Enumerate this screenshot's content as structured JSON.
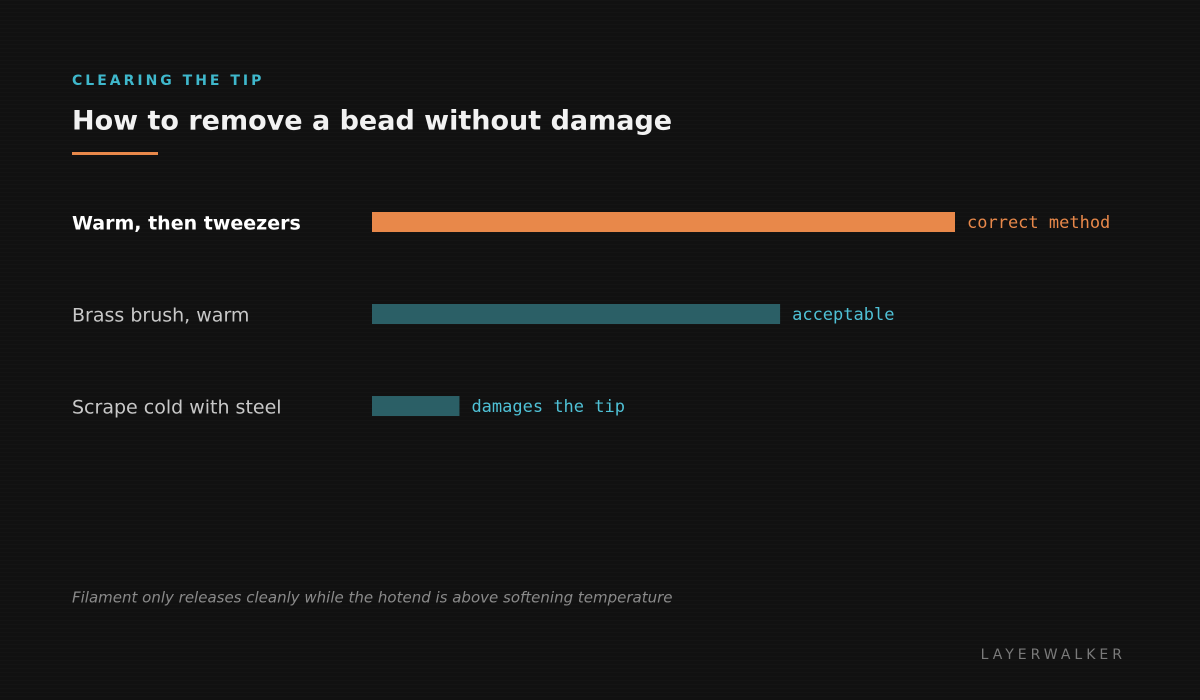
{
  "chart_data": {
    "type": "bar",
    "kicker": "CLEARING THE TIP",
    "title": "How to remove a bead without damage",
    "categories": [
      "Warm, then tweezers",
      "Brass brush, warm",
      "Scrape cold with steel"
    ],
    "values": [
      100,
      70,
      15
    ],
    "annotations": [
      "correct method",
      "acceptable",
      "damages the tip"
    ],
    "colors": [
      "#e8884a",
      "#2b5f66",
      "#2b5f66"
    ],
    "annotation_colors": [
      "#e8884a",
      "#4fc1d6",
      "#4fc1d6"
    ],
    "highlight_index": 0,
    "xlim": [
      0,
      100
    ],
    "footnote": "Filament only releases cleanly while the hotend is above softening temperature",
    "brand": "LAYERWALKER"
  }
}
